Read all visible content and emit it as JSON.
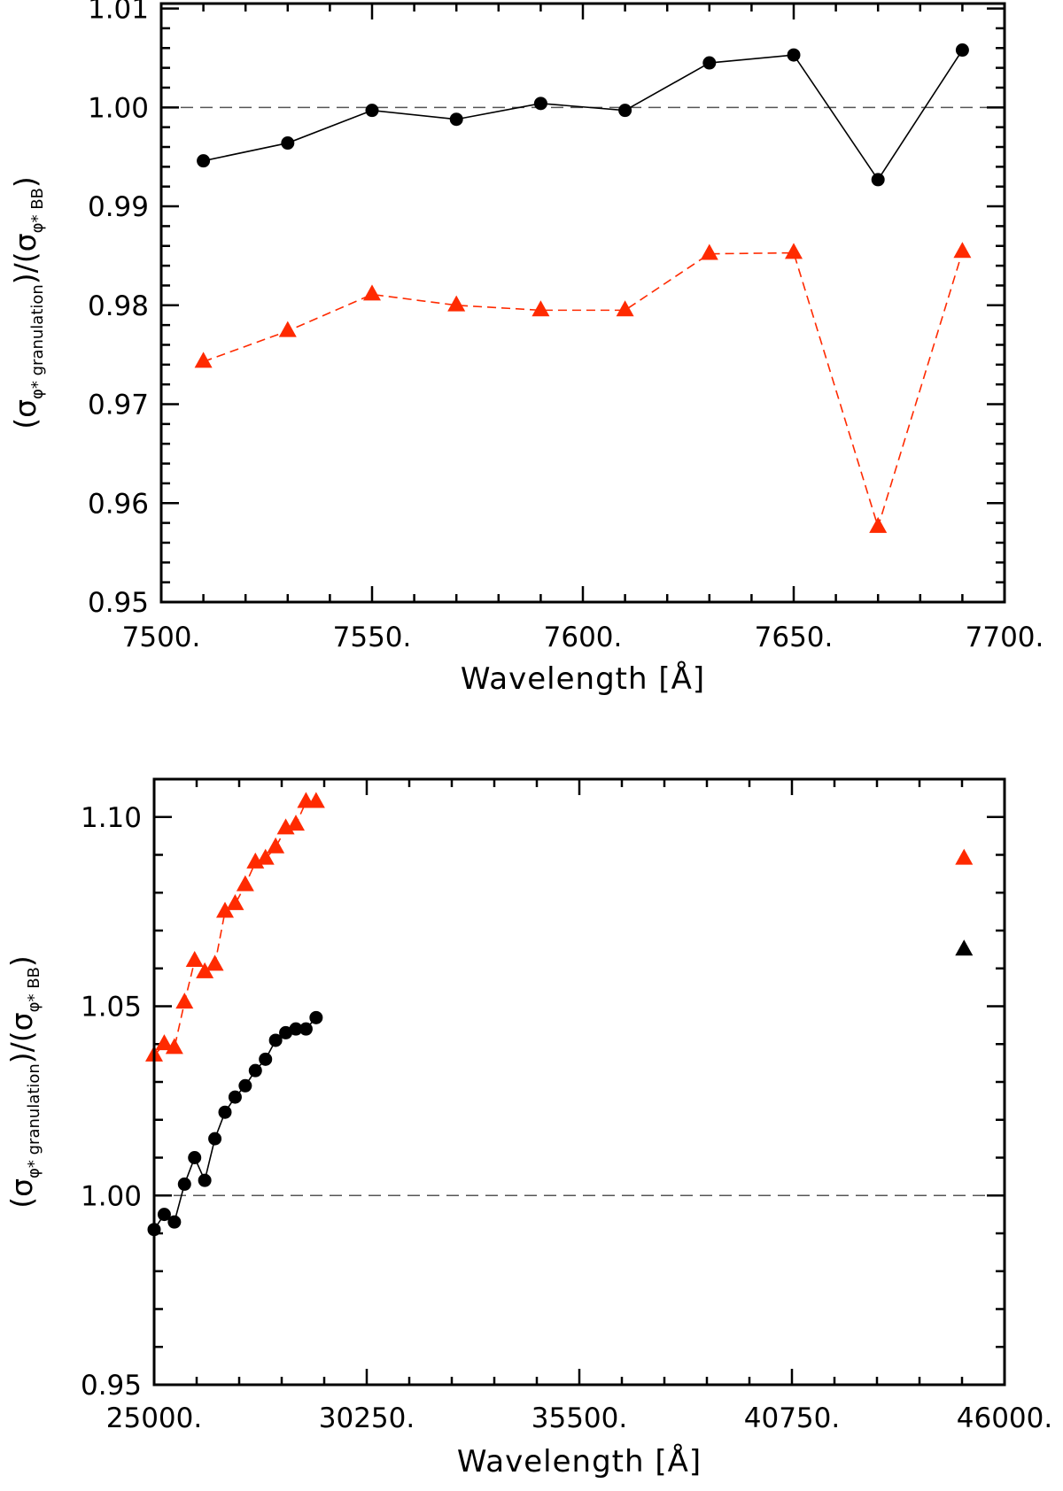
{
  "chart_data": [
    {
      "type": "line",
      "xlabel": "Wavelength [Å]",
      "ylabel": {
        "open": "(σ",
        "sub1": "φ* granulation",
        "mid": ")/(σ",
        "sub2": "φ* BB",
        "close": ")"
      },
      "xlim": [
        7500,
        7700
      ],
      "ylim": [
        0.95,
        1.0105
      ],
      "x_ticks": [
        7500,
        7550,
        7600,
        7650,
        7700
      ],
      "x_tick_labels": [
        "7500.",
        "7550.",
        "7600.",
        "7650.",
        "7700."
      ],
      "y_ticks": [
        0.95,
        0.96,
        0.97,
        0.98,
        0.99,
        1.0,
        1.01
      ],
      "y_tick_labels": [
        "0.95",
        "0.96",
        "0.97",
        "0.98",
        "0.99",
        "1.00",
        "1.01"
      ],
      "reference_line": 1.0,
      "series": [
        {
          "name": "black circles",
          "color": "#000000",
          "marker": "circle",
          "line": "solid",
          "x": [
            7510,
            7530,
            7550,
            7570,
            7590,
            7610,
            7630,
            7650,
            7670,
            7690
          ],
          "y": [
            0.9946,
            0.9964,
            0.9997,
            0.9988,
            1.0004,
            0.9997,
            1.0045,
            1.0053,
            0.9927,
            1.0058
          ]
        },
        {
          "name": "red triangles",
          "color": "#ff2a00",
          "marker": "triangle",
          "line": "dashed",
          "x": [
            7510,
            7530,
            7550,
            7570,
            7590,
            7610,
            7630,
            7650,
            7670,
            7690
          ],
          "y": [
            0.9743,
            0.9774,
            0.9811,
            0.98,
            0.9795,
            0.9795,
            0.9852,
            0.9853,
            0.9576,
            0.9854
          ]
        }
      ]
    },
    {
      "type": "line",
      "xlabel": "Wavelength [Å]",
      "ylabel": {
        "open": "(σ",
        "sub1": "φ* granulation",
        "mid": ")/(σ",
        "sub2": "φ* BB",
        "close": ")"
      },
      "xlim": [
        25000,
        46000
      ],
      "ylim": [
        0.95,
        1.11
      ],
      "x_ticks": [
        25000,
        30250,
        35500,
        40750,
        46000
      ],
      "x_tick_labels": [
        "25000.",
        "30250.",
        "35500.",
        "40750.",
        "46000."
      ],
      "y_ticks": [
        0.95,
        1.0,
        1.05,
        1.1
      ],
      "y_tick_labels": [
        "0.95",
        "1.00",
        "1.05",
        "1.10"
      ],
      "reference_line": 1.0,
      "series": [
        {
          "name": "red triangles",
          "color": "#ff2a00",
          "marker": "triangle",
          "line": "dashed",
          "x": [
            25000,
            25250,
            25500,
            25750,
            26000,
            26250,
            26500,
            26750,
            27000,
            27250,
            27500,
            27750,
            28000,
            28250,
            28500,
            28750,
            29000
          ],
          "y": [
            1.037,
            1.04,
            1.039,
            1.051,
            1.062,
            1.059,
            1.061,
            1.075,
            1.077,
            1.082,
            1.088,
            1.089,
            1.092,
            1.097,
            1.098,
            1.104,
            1.104
          ]
        },
        {
          "name": "black circles",
          "color": "#000000",
          "marker": "circle",
          "line": "solid",
          "x": [
            25000,
            25250,
            25500,
            25750,
            26000,
            26250,
            26500,
            26750,
            27000,
            27250,
            27500,
            27750,
            28000,
            28250,
            28500,
            28750,
            29000
          ],
          "y": [
            0.991,
            0.995,
            0.993,
            1.003,
            1.01,
            1.004,
            1.015,
            1.022,
            1.026,
            1.029,
            1.033,
            1.036,
            1.041,
            1.043,
            1.044,
            1.044,
            1.047
          ]
        },
        {
          "name": "red triangle single",
          "color": "#ff2a00",
          "marker": "triangle",
          "line": "none",
          "x": [
            45000
          ],
          "y": [
            1.089
          ]
        },
        {
          "name": "black triangle single",
          "color": "#000000",
          "marker": "triangle",
          "line": "none",
          "x": [
            45000
          ],
          "y": [
            1.065
          ]
        }
      ]
    }
  ]
}
